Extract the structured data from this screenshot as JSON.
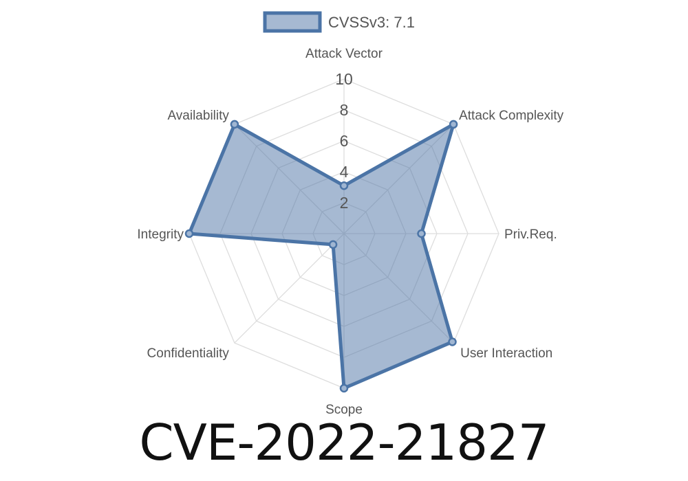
{
  "chart_data": {
    "type": "radar",
    "legend": {
      "label": "CVSSv3: 7.1",
      "placement": "top-center"
    },
    "axes": [
      "Attack Vector",
      "Attack Complexity",
      "Priv.Req.",
      "User Interaction",
      "Scope",
      "Confidentiality",
      "Integrity",
      "Availability"
    ],
    "series": [
      {
        "name": "CVSSv3: 7.1",
        "values": [
          3.1,
          10,
          5,
          9.9,
          10,
          1,
          10,
          10
        ]
      }
    ],
    "rlim": [
      0,
      10
    ],
    "ticks": [
      "2",
      "4",
      "6",
      "8",
      "10"
    ],
    "tick_values": [
      2,
      4,
      6,
      8,
      10
    ],
    "grid": true,
    "colors": {
      "line": "#4b74a6",
      "fill": "rgba(78,116,166,0.5)",
      "grid": "#dddddd"
    }
  },
  "title": "CVE-2022-21827"
}
